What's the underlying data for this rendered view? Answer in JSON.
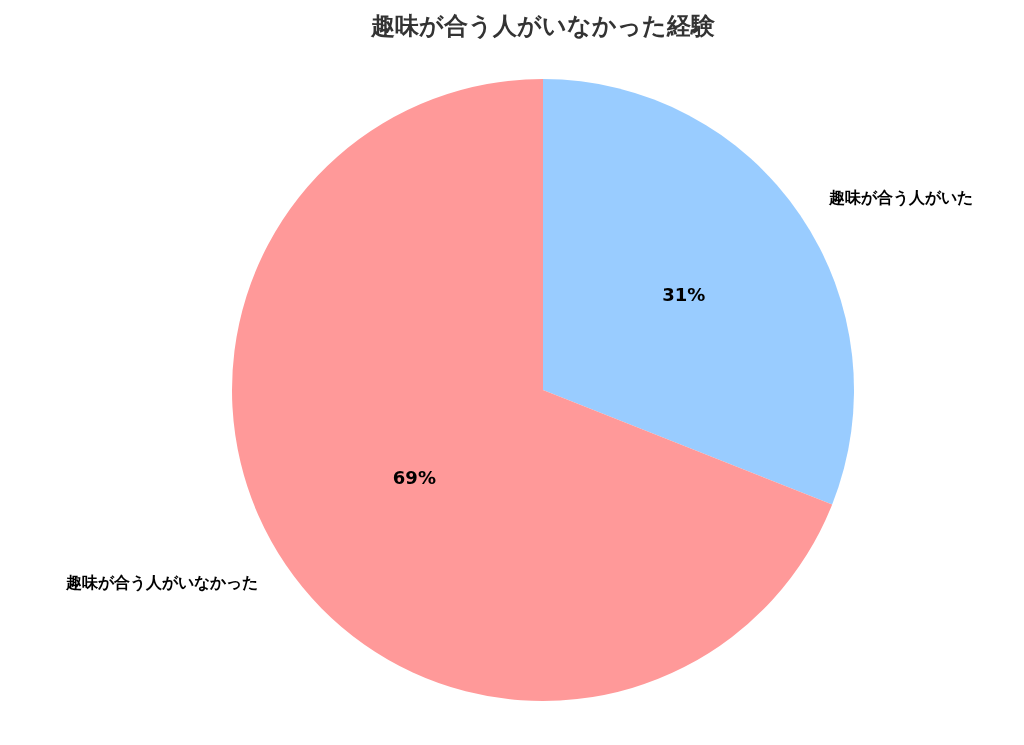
{
  "chart_data": {
    "type": "pie",
    "title": "趣味が合う人がいなかった経験",
    "categories": [
      "趣味が合う人がいた",
      "趣味が合う人がいなかった"
    ],
    "values": [
      31,
      69
    ],
    "value_labels": [
      "31%",
      "69%"
    ],
    "colors": [
      "#99ccff",
      "#ff9999"
    ],
    "legend": false
  }
}
